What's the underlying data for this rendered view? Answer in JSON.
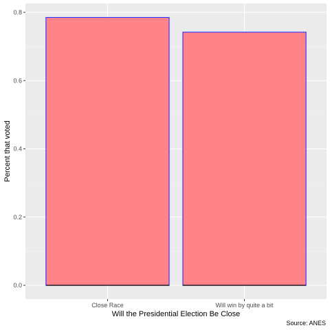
{
  "chart_data": {
    "type": "bar",
    "categories": [
      "Close Race",
      "Will win by quite a bit"
    ],
    "values": [
      0.785,
      0.742
    ],
    "xlabel": "Will the Presidential Election Be Close",
    "ylabel": "Percent that voted",
    "caption": "Source: ANES",
    "ylim": [
      0,
      0.8
    ],
    "yticks": [
      0.0,
      0.2,
      0.4,
      0.6,
      0.8
    ],
    "ytick_labels": [
      "0.0",
      "0.2",
      "0.4",
      "0.6",
      "0.8"
    ],
    "grid": true,
    "legend": "none",
    "colors": {
      "bar_fill": "#ff8489",
      "bar_outline": "#2b2bff",
      "panel_background": "#ebebeb",
      "grid_major": "#ffffff",
      "grid_minor": "#f5f5f5"
    }
  }
}
